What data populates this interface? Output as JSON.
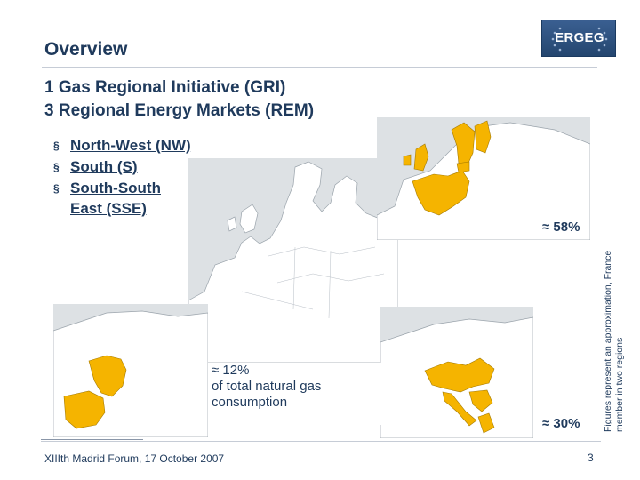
{
  "title": "Overview",
  "logo": {
    "text": "ERGEG"
  },
  "headings": [
    "1 Gas Regional Initiative (GRI)",
    "3 Regional Energy Markets (REM)"
  ],
  "bullet_mark": "§",
  "bullets": [
    "North-West (NW)",
    "South (S)",
    "South-South East (SSE)"
  ],
  "shares": {
    "nw": "≈ 58%",
    "sse": "≈ 30%",
    "s_line1": "≈ 12%",
    "s_line2": "of total natural gas",
    "s_line3": "consumption"
  },
  "side_note": {
    "line1": "Figures represent an approximation, France",
    "line2": "member in two regions"
  },
  "footer": "XIIIth Madrid Forum, 17 October 2007",
  "page_number": "3",
  "colors": {
    "region": "#f5b400",
    "land": "#ffffff",
    "sea": "#dde1e4",
    "text": "#1f3a5c",
    "logo_bg": "#2c507c"
  }
}
